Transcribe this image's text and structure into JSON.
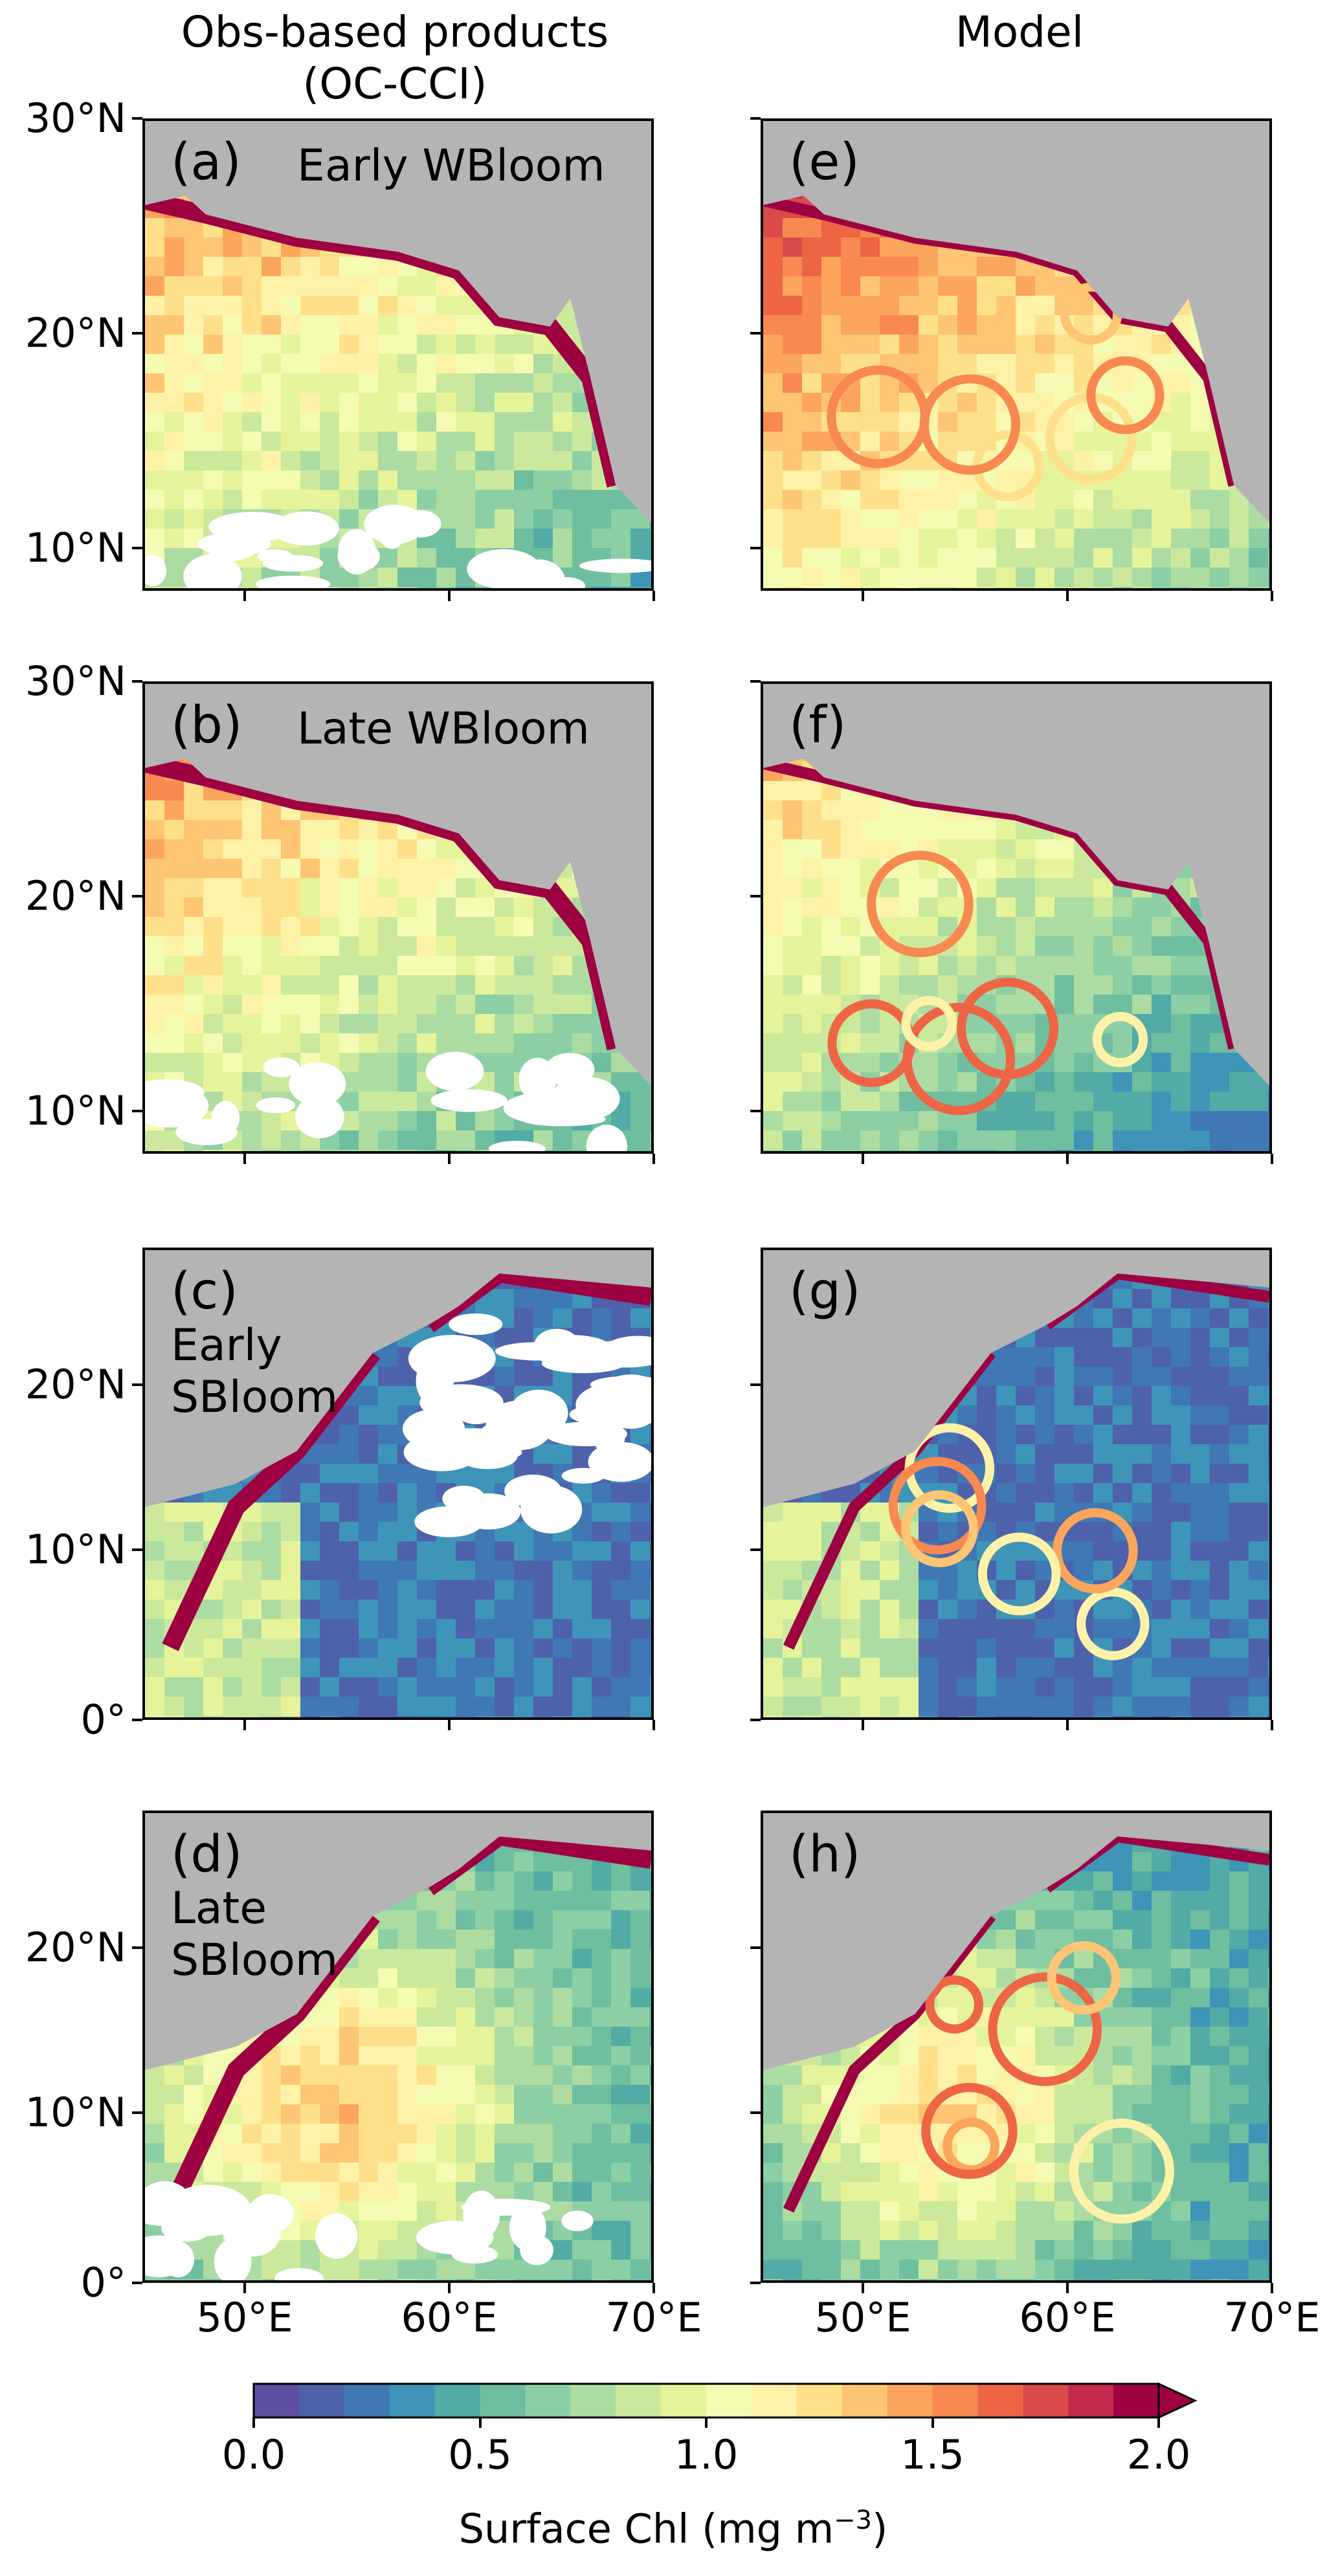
{
  "column_headers": {
    "left_line1": "Obs-based products",
    "left_line2": "(OC-CCI)",
    "right": "Model"
  },
  "panels": [
    {
      "label": "(a)",
      "title": "Early WBloom",
      "source": "obs",
      "region": "north"
    },
    {
      "label": "(b)",
      "title": "Late WBloom",
      "source": "obs",
      "region": "north"
    },
    {
      "label": "(c)",
      "title": "Early\nSBloom",
      "source": "obs",
      "region": "full"
    },
    {
      "label": "(d)",
      "title": "Late\nSBloom",
      "source": "obs",
      "region": "full"
    },
    {
      "label": "(e)",
      "title": "",
      "source": "model",
      "region": "north"
    },
    {
      "label": "(f)",
      "title": "",
      "source": "model",
      "region": "north"
    },
    {
      "label": "(g)",
      "title": "",
      "source": "model",
      "region": "full"
    },
    {
      "label": "(h)",
      "title": "",
      "source": "model",
      "region": "full"
    }
  ],
  "axes": {
    "north_lat_ticks": [
      "30°N",
      "20°N",
      "10°N"
    ],
    "full_lat_ticks": [
      "20°N",
      "10°N",
      "0°"
    ],
    "lon_ticks": [
      "50°E",
      "60°E",
      "70°E"
    ]
  },
  "colorbar": {
    "label": "Surface Chl (mg m",
    "label_exponent": "−3",
    "label_close": ")",
    "ticks": [
      "0.0",
      "0.5",
      "1.0",
      "1.5",
      "2.0"
    ],
    "min": 0.0,
    "max": 2.0,
    "extend": "max",
    "colors": [
      "#5e4fa2",
      "#4d62ab",
      "#3f78b4",
      "#3e95b8",
      "#52aba5",
      "#6ebe9f",
      "#8ccfa4",
      "#acdca2",
      "#cbe99d",
      "#e5f49a",
      "#f5fbb3",
      "#fef2a8",
      "#fee08b",
      "#fdc574",
      "#fca55d",
      "#f88950",
      "#ed6545",
      "#db4a4a",
      "#c32a4b",
      "#9e0142"
    ],
    "land_color": "#b4b4b4",
    "missing_color": "#ffffff"
  }
}
